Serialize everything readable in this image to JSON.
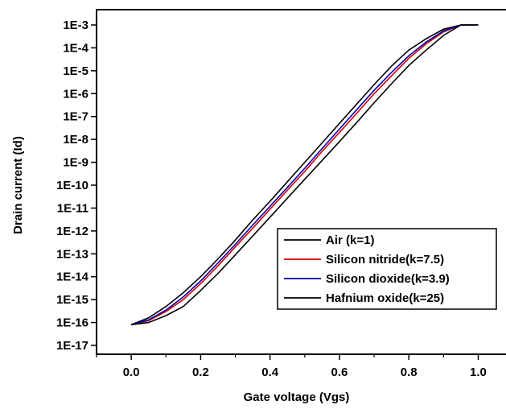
{
  "chart_data": {
    "type": "line",
    "title": "",
    "xlabel": "Gate voltage (Vgs)",
    "ylabel": "Drain current (Id)",
    "x_scale": "linear",
    "y_scale": "log",
    "xlim": [
      -0.1,
      1.08
    ],
    "ylim": [
      1e-17,
      0.001
    ],
    "x_ticks": [
      "0.0",
      "0.2",
      "0.4",
      "0.6",
      "0.8",
      "1.0"
    ],
    "y_ticks": [
      "1E-17",
      "1E-16",
      "1E-15",
      "1E-14",
      "1E-13",
      "1E-12",
      "1E-11",
      "1E-10",
      "1E-9",
      "1E-8",
      "1E-7",
      "1E-6",
      "1E-5",
      "1E-4",
      "1E-3"
    ],
    "grid": false,
    "legend_placement": "bottom-right",
    "series": [
      {
        "name": "Air (k=1)",
        "color": "#000000",
        "x": [
          0.0,
          0.05,
          0.1,
          0.15,
          0.2,
          0.25,
          0.3,
          0.35,
          0.4,
          0.45,
          0.5,
          0.55,
          0.6,
          0.65,
          0.7,
          0.75,
          0.8,
          0.85,
          0.9,
          0.95,
          1.0
        ],
        "y": [
          8e-17,
          1.6e-16,
          5e-16,
          2e-15,
          1e-14,
          6e-14,
          4e-13,
          3e-12,
          2e-11,
          1.4e-10,
          1e-09,
          7e-09,
          5e-08,
          3.5e-07,
          2.5e-06,
          1.6e-05,
          8e-05,
          0.00025,
          0.00065,
          0.0014,
          0.0023
        ]
      },
      {
        "name": "Silicon nitride(k=7.5)",
        "color": "#d40000",
        "x": [
          0.0,
          0.05,
          0.1,
          0.15,
          0.2,
          0.25,
          0.3,
          0.35,
          0.4,
          0.45,
          0.5,
          0.55,
          0.6,
          0.65,
          0.7,
          0.75,
          0.8,
          0.85,
          0.9,
          0.95,
          1.0
        ],
        "y": [
          8e-17,
          1.2e-16,
          3e-16,
          1e-15,
          5e-15,
          3e-14,
          2e-13,
          1.3e-12,
          9e-12,
          6e-11,
          4e-10,
          3e-09,
          2e-08,
          1.4e-07,
          1e-06,
          6e-06,
          3.5e-05,
          0.00015,
          0.0005,
          0.0012,
          0.0023
        ]
      },
      {
        "name": "Silicon dioxide(k=3.9)",
        "color": "#0000b4",
        "x": [
          0.0,
          0.05,
          0.1,
          0.15,
          0.2,
          0.25,
          0.3,
          0.35,
          0.4,
          0.45,
          0.5,
          0.55,
          0.6,
          0.65,
          0.7,
          0.75,
          0.8,
          0.85,
          0.9,
          0.95,
          1.0
        ],
        "y": [
          8e-17,
          1.3e-16,
          3.5e-16,
          1.3e-15,
          6.5e-15,
          4e-14,
          2.6e-13,
          1.8e-12,
          1.2e-11,
          8e-11,
          5.5e-10,
          4e-09,
          2.8e-08,
          2e-07,
          1.4e-06,
          8.5e-06,
          4.5e-05,
          0.00018,
          0.00055,
          0.00125,
          0.0023
        ]
      },
      {
        "name": "Hafnium oxide(k=25)",
        "color": "#000000",
        "x": [
          0.0,
          0.05,
          0.1,
          0.15,
          0.2,
          0.25,
          0.3,
          0.35,
          0.4,
          0.45,
          0.5,
          0.55,
          0.6,
          0.65,
          0.7,
          0.75,
          0.8,
          0.85,
          0.9,
          0.95,
          1.0
        ],
        "y": [
          8e-17,
          1e-16,
          2e-16,
          5e-16,
          2.5e-15,
          1.4e-14,
          9e-14,
          6e-13,
          4e-12,
          2.7e-11,
          1.8e-10,
          1.2e-09,
          8e-09,
          5.5e-08,
          4e-07,
          2.7e-06,
          1.7e-05,
          8e-05,
          0.00035,
          0.001,
          0.0023
        ]
      }
    ]
  }
}
